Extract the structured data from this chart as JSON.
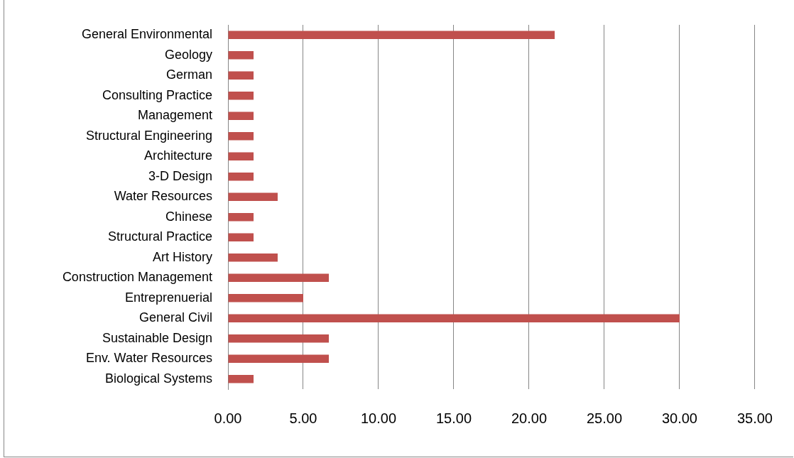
{
  "chart_data": {
    "type": "bar",
    "orientation": "horizontal",
    "categories": [
      "General Environmental",
      "Geology",
      "German",
      "Consulting Practice",
      "Management",
      "Structural Engineering",
      "Architecture",
      "3-D Design",
      "Water Resources",
      "Chinese",
      "Structural Practice",
      "Art History",
      "Construction Management",
      "Entreprenuerial",
      "General Civil",
      "Sustainable Design",
      "Env. Water Resources",
      "Biological Systems"
    ],
    "values": [
      21.7,
      1.7,
      1.7,
      1.7,
      1.7,
      1.7,
      1.7,
      1.7,
      3.3,
      1.7,
      1.7,
      3.3,
      6.7,
      5.0,
      30.0,
      6.7,
      6.7,
      1.7
    ],
    "color": "#c0504d",
    "xlim": [
      0,
      35
    ],
    "xticks": [
      {
        "value": 0,
        "label": "0.00"
      },
      {
        "value": 5,
        "label": "5.00"
      },
      {
        "value": 10,
        "label": "10.00"
      },
      {
        "value": 15,
        "label": "15.00"
      },
      {
        "value": 20,
        "label": "20.00"
      },
      {
        "value": 25,
        "label": "25.00"
      },
      {
        "value": 30,
        "label": "30.00"
      },
      {
        "value": 35,
        "label": "35.00"
      }
    ],
    "grid": "x",
    "legend": false
  }
}
